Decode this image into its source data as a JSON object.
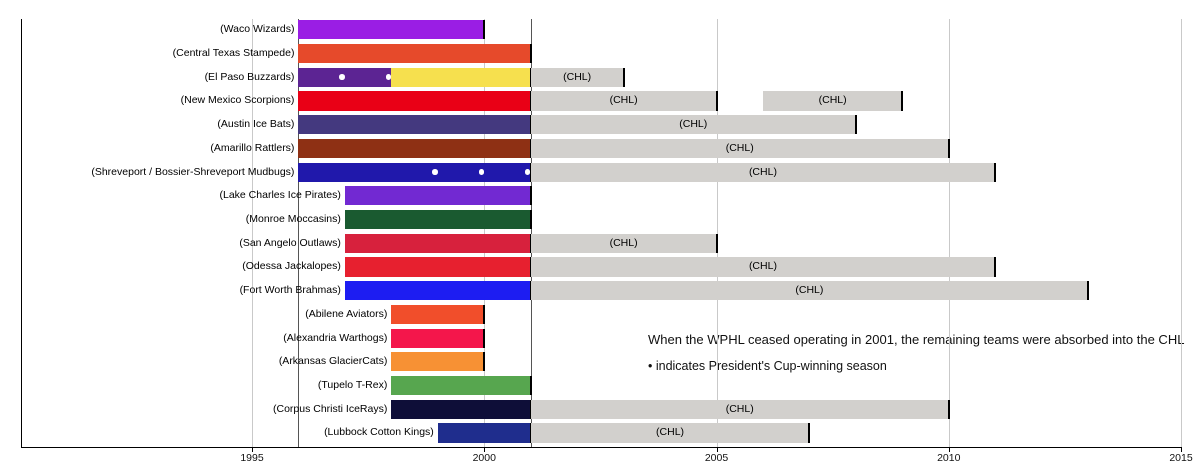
{
  "annotation": {
    "line1": "When the WPHL ceased operating in 2001, the remaining teams were absorbed into the CHL",
    "line2": "• indicates President's Cup-winning season"
  },
  "chart_data": {
    "type": "timeline",
    "x_axis": {
      "ticks": [
        1995,
        2000,
        2005,
        2010,
        2015
      ],
      "range": [
        1990,
        2015.3
      ],
      "grid": true
    },
    "era_boundaries": [
      1996,
      2001
    ],
    "chl_bar_label": "(CHL)",
    "chl_bar_color": "#D2D0CD",
    "cup_dot_color": "#FFFFFF",
    "teams": [
      {
        "name": "(Waco Wizards)",
        "segments": [
          {
            "from": 1996,
            "to": 2000,
            "color": "#9A1EE4"
          }
        ]
      },
      {
        "name": "(Central Texas Stampede)",
        "segments": [
          {
            "from": 1996,
            "to": 2001,
            "color": "#E64A2B"
          }
        ]
      },
      {
        "name": "(El Paso Buzzards)",
        "segments": [
          {
            "from": 1996,
            "to": 1998,
            "color": "#5C2493",
            "smooth_end": true
          },
          {
            "from": 1998,
            "to": 2001,
            "color": "#F6E04E"
          },
          {
            "from": 2001,
            "to": 2003,
            "league": "CHL"
          }
        ],
        "cup_seasons": [
          1997,
          1998
        ]
      },
      {
        "name": "(New Mexico Scorpions)",
        "segments": [
          {
            "from": 1996,
            "to": 2001,
            "color": "#E90016"
          },
          {
            "from": 2001,
            "to": 2005,
            "league": "CHL"
          },
          {
            "from": 2006,
            "to": 2009,
            "league": "CHL"
          }
        ]
      },
      {
        "name": "(Austin Ice Bats)",
        "segments": [
          {
            "from": 1996,
            "to": 2001,
            "color": "#44397F"
          },
          {
            "from": 2001,
            "to": 2008,
            "league": "CHL"
          }
        ]
      },
      {
        "name": "(Amarillo Rattlers)",
        "segments": [
          {
            "from": 1996,
            "to": 2001,
            "color": "#8E3014"
          },
          {
            "from": 2001,
            "to": 2010,
            "league": "CHL"
          }
        ]
      },
      {
        "name": "(Shreveport / Bossier-Shreveport Mudbugs)",
        "segments": [
          {
            "from": 1996,
            "to": 2001,
            "color": "#2018AB"
          },
          {
            "from": 2001,
            "to": 2011,
            "league": "CHL"
          }
        ],
        "cup_seasons": [
          1999,
          2000,
          2001
        ]
      },
      {
        "name": "(Lake Charles Ice Pirates)",
        "segments": [
          {
            "from": 1997,
            "to": 2001,
            "color": "#7229D2"
          }
        ]
      },
      {
        "name": "(Monroe Moccasins)",
        "segments": [
          {
            "from": 1997,
            "to": 2001,
            "color": "#1A5A30"
          }
        ]
      },
      {
        "name": "(San Angelo Outlaws)",
        "segments": [
          {
            "from": 1997,
            "to": 2001,
            "color": "#D7213D"
          },
          {
            "from": 2001,
            "to": 2005,
            "league": "CHL"
          }
        ]
      },
      {
        "name": "(Odessa Jackalopes)",
        "segments": [
          {
            "from": 1997,
            "to": 2001,
            "color": "#E7202F"
          },
          {
            "from": 2001,
            "to": 2011,
            "league": "CHL"
          }
        ]
      },
      {
        "name": "(Fort Worth Brahmas)",
        "segments": [
          {
            "from": 1997,
            "to": 2001,
            "color": "#1D1DF2"
          },
          {
            "from": 2001,
            "to": 2013,
            "league": "CHL"
          }
        ]
      },
      {
        "name": "(Abilene Aviators)",
        "segments": [
          {
            "from": 1998,
            "to": 2000,
            "color": "#F14E2B"
          }
        ]
      },
      {
        "name": "(Alexandria Warthogs)",
        "segments": [
          {
            "from": 1998,
            "to": 2000,
            "color": "#F4164B"
          }
        ]
      },
      {
        "name": "(Arkansas GlacierCats)",
        "segments": [
          {
            "from": 1998,
            "to": 2000,
            "color": "#F79134"
          }
        ]
      },
      {
        "name": "(Tupelo T-Rex)",
        "segments": [
          {
            "from": 1998,
            "to": 2001,
            "color": "#57A64F"
          }
        ]
      },
      {
        "name": "(Corpus Christi IceRays)",
        "segments": [
          {
            "from": 1998,
            "to": 2001,
            "color": "#0E0E38"
          },
          {
            "from": 2001,
            "to": 2010,
            "league": "CHL"
          }
        ]
      },
      {
        "name": "(Lubbock Cotton Kings)",
        "segments": [
          {
            "from": 1999,
            "to": 2001,
            "color": "#1F2D8D"
          },
          {
            "from": 2001,
            "to": 2007,
            "league": "CHL"
          }
        ]
      }
    ]
  }
}
